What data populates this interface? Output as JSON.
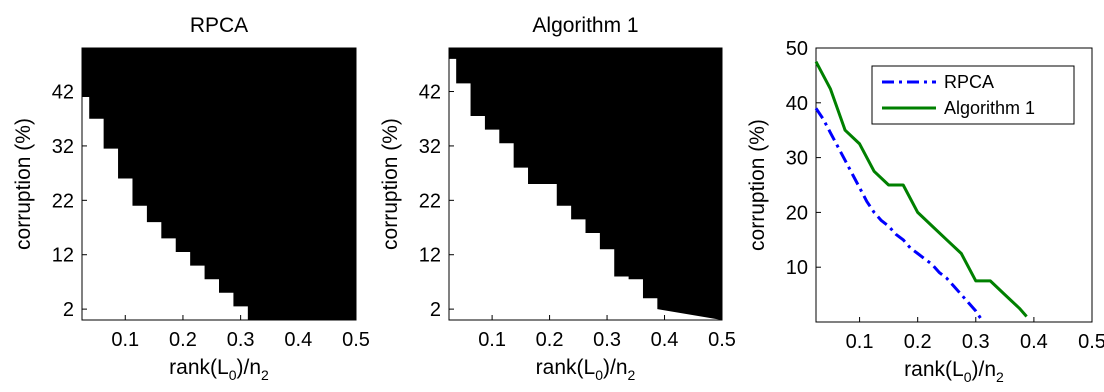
{
  "chart_data": [
    {
      "type": "heatmap",
      "title": "RPCA",
      "xlabel_main": "rank(L",
      "xlabel_sub0": "0",
      "xlabel_mid": ")/n",
      "xlabel_sub2": "2",
      "ylabel": "corruption (%)",
      "xlim": [
        0.025,
        0.5
      ],
      "ylim": [
        0,
        50
      ],
      "xticks": [
        0.1,
        0.2,
        0.3,
        0.4,
        0.5
      ],
      "xticklabels": [
        "0.1",
        "0.2",
        "0.3",
        "0.4",
        "0.5"
      ],
      "yticks": [
        2,
        12,
        22,
        32,
        42
      ],
      "yticklabels": [
        "2",
        "12",
        "22",
        "32",
        "42"
      ],
      "colors": {
        "success": "#ffffff",
        "failure": "#000000"
      },
      "boundary_rank": [
        0.025,
        0.0375,
        0.0625,
        0.0875,
        0.1125,
        0.1375,
        0.1625,
        0.1875,
        0.2125,
        0.2375,
        0.2625,
        0.2875,
        0.3125
      ],
      "boundary_corruption": [
        41,
        37,
        31.5,
        26,
        21,
        18,
        15,
        12.5,
        10,
        7.5,
        5,
        2.5,
        0
      ]
    },
    {
      "type": "heatmap",
      "title": "Algorithm 1",
      "xlabel_main": "rank(L",
      "xlabel_sub0": "0",
      "xlabel_mid": ")/n",
      "xlabel_sub2": "2",
      "ylabel": "corruption (%)",
      "xlim": [
        0.025,
        0.5
      ],
      "ylim": [
        0,
        50
      ],
      "xticks": [
        0.1,
        0.2,
        0.3,
        0.4,
        0.5
      ],
      "xticklabels": [
        "0.1",
        "0.2",
        "0.3",
        "0.4",
        "0.5"
      ],
      "yticks": [
        2,
        12,
        22,
        32,
        42
      ],
      "yticklabels": [
        "2",
        "12",
        "22",
        "32",
        "42"
      ],
      "colors": {
        "success": "#ffffff",
        "failure": "#000000"
      },
      "boundary_rank": [
        0.025,
        0.0375,
        0.0625,
        0.0875,
        0.1125,
        0.1375,
        0.1625,
        0.1875,
        0.2125,
        0.2375,
        0.2625,
        0.2875,
        0.3125,
        0.3375,
        0.3625,
        0.3875
      ],
      "boundary_corruption": [
        48,
        43.5,
        37.5,
        35,
        32.5,
        28,
        25,
        25,
        21,
        18.5,
        16,
        13,
        8,
        7.5,
        4,
        2
      ]
    },
    {
      "type": "line",
      "title": "",
      "xlabel_main": "rank(L",
      "xlabel_sub0": "0",
      "xlabel_mid": ")/n",
      "xlabel_sub2": "2",
      "ylabel": "corruption (%)",
      "xlim": [
        0.025,
        0.5
      ],
      "ylim": [
        0,
        50
      ],
      "xticks": [
        0.1,
        0.2,
        0.3,
        0.4,
        0.5
      ],
      "xticklabels": [
        "0.1",
        "0.2",
        "0.3",
        "0.4",
        "0.5"
      ],
      "yticks": [
        10,
        20,
        30,
        40,
        50
      ],
      "yticklabels": [
        "10",
        "20",
        "30",
        "40",
        "50"
      ],
      "legend_position": "top-right",
      "series": [
        {
          "name": "RPCA",
          "color": "#0000ff",
          "style": "dash-dot",
          "x": [
            0.025,
            0.0375,
            0.05,
            0.0625,
            0.075,
            0.0875,
            0.1,
            0.1125,
            0.125,
            0.1375,
            0.15,
            0.1625,
            0.175,
            0.1875,
            0.2,
            0.2125,
            0.225,
            0.2375,
            0.25,
            0.2625,
            0.275,
            0.2875,
            0.3,
            0.3125
          ],
          "y": [
            39,
            37,
            34.5,
            32,
            29.5,
            27,
            24.5,
            22,
            20,
            18.5,
            17.5,
            16,
            15,
            13.5,
            12.5,
            11.5,
            10.5,
            9,
            8,
            6.5,
            5,
            3.5,
            2,
            0
          ]
        },
        {
          "name": "Algorithm 1",
          "color": "#008000",
          "style": "solid",
          "x": [
            0.025,
            0.05,
            0.075,
            0.1,
            0.125,
            0.15,
            0.175,
            0.2,
            0.225,
            0.25,
            0.275,
            0.3,
            0.325,
            0.35,
            0.375,
            0.3875
          ],
          "y": [
            47.5,
            42.5,
            35,
            32.5,
            27.5,
            25,
            25,
            20,
            17.5,
            15,
            12.5,
            7.5,
            7.5,
            5,
            2.5,
            1
          ]
        }
      ]
    }
  ]
}
